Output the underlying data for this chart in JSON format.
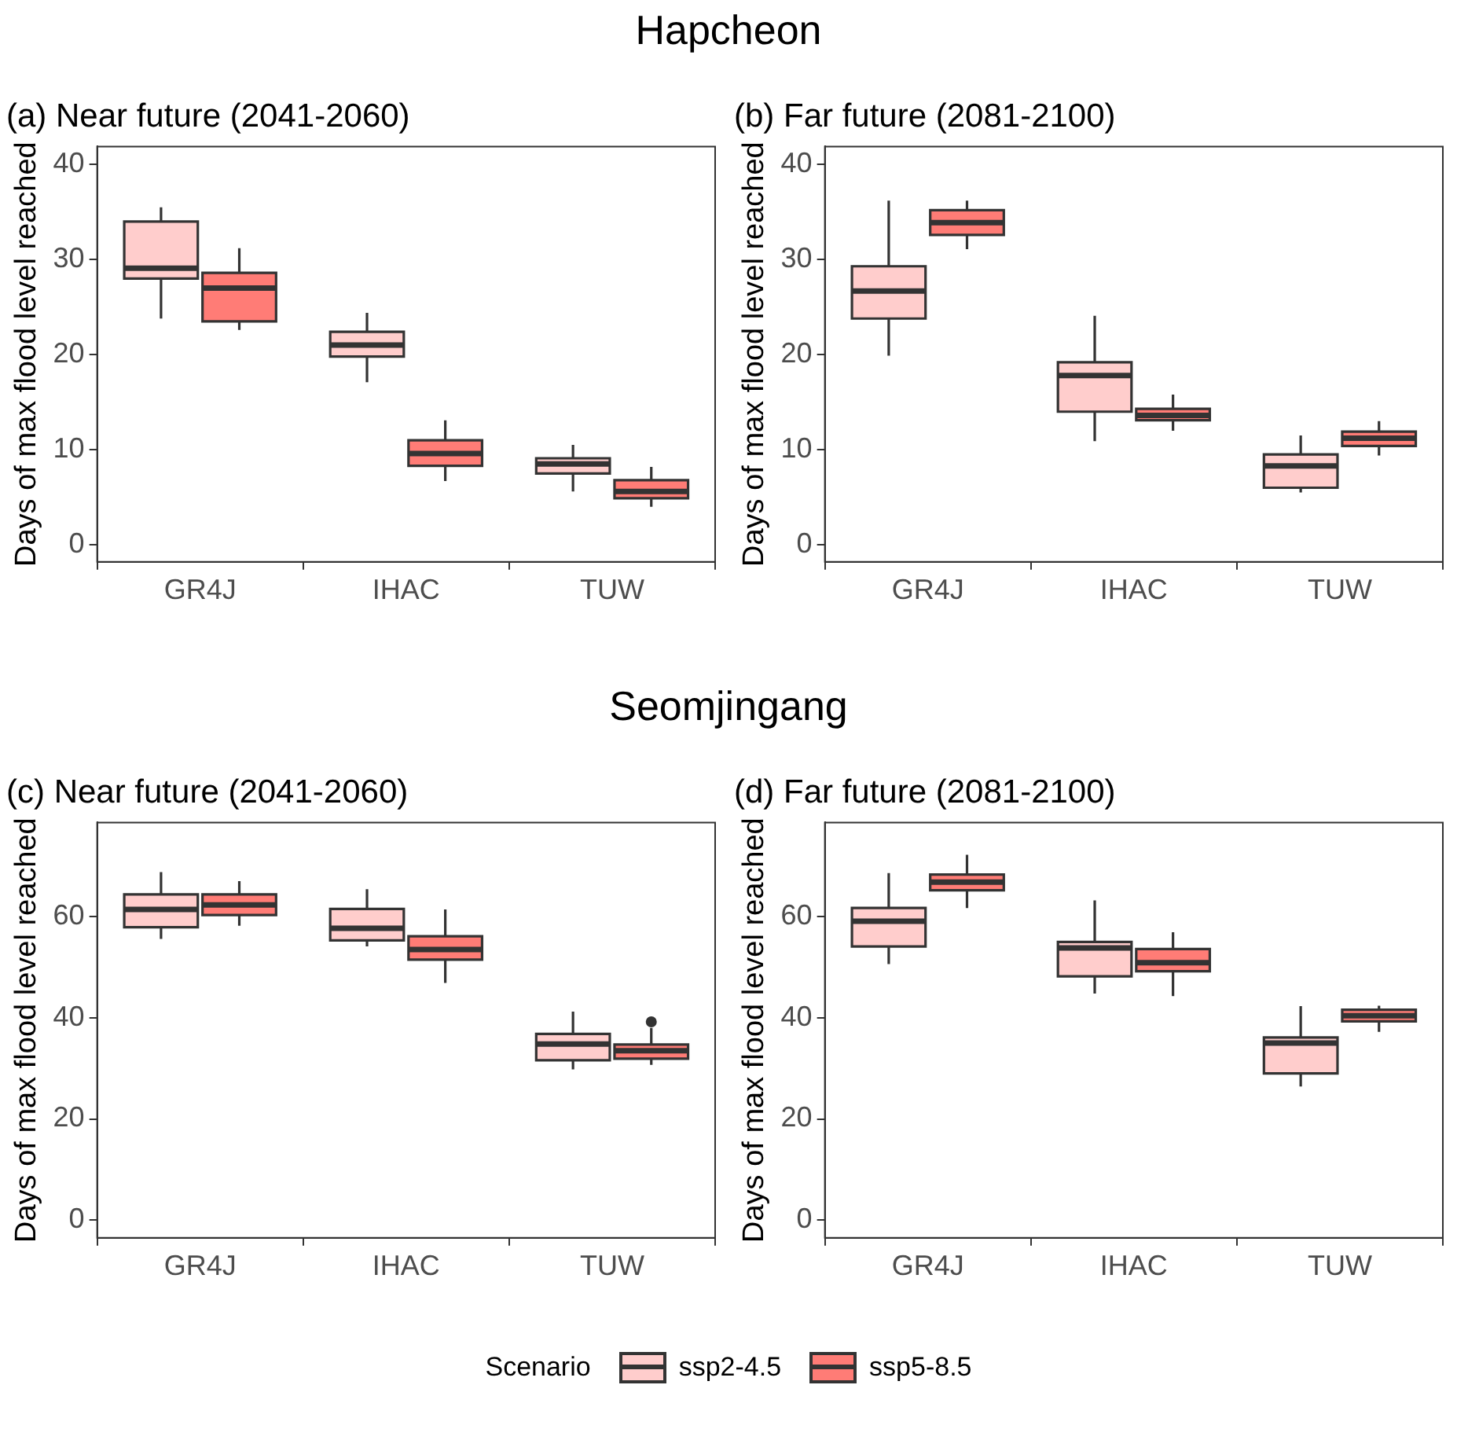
{
  "chart_data": [
    {
      "type": "box",
      "title": "(a) Near future (2041-2060)",
      "annotations": [
        "Hapcheon"
      ],
      "ylabel": "Days of max flood level reached",
      "categories": [
        "GR4J",
        "IHAC",
        "TUW"
      ],
      "ylim": [
        -1.8,
        41.9
      ],
      "yticks": [
        0,
        10,
        20,
        30,
        40
      ],
      "grid": false,
      "legend": "bottom",
      "series": [
        {
          "name": "ssp2-4.5",
          "color": "#ffcdcc",
          "boxes": [
            {
              "low": 23.8,
              "q1": 28.0,
              "median": 29.1,
              "q3": 34.0,
              "high": 35.5
            },
            {
              "low": 17.1,
              "q1": 19.8,
              "median": 21.0,
              "q3": 22.4,
              "high": 24.4
            },
            {
              "low": 5.6,
              "q1": 7.5,
              "median": 8.5,
              "q3": 9.1,
              "high": 10.5
            }
          ]
        },
        {
          "name": "ssp5-8.5",
          "color": "#ff7c76",
          "boxes": [
            {
              "low": 22.6,
              "q1": 23.5,
              "median": 27.0,
              "q3": 28.6,
              "high": 31.2
            },
            {
              "low": 6.7,
              "q1": 8.3,
              "median": 9.6,
              "q3": 11.0,
              "high": 13.1
            },
            {
              "low": 4.0,
              "q1": 4.9,
              "median": 5.6,
              "q3": 6.8,
              "high": 8.2
            }
          ]
        }
      ]
    },
    {
      "type": "box",
      "title": "(b) Far future (2081-2100)",
      "ylabel": "Days of max flood level reached",
      "categories": [
        "GR4J",
        "IHAC",
        "TUW"
      ],
      "ylim": [
        -1.8,
        41.9
      ],
      "yticks": [
        0,
        10,
        20,
        30,
        40
      ],
      "grid": false,
      "legend": "bottom",
      "series": [
        {
          "name": "ssp2-4.5",
          "color": "#ffcdcc",
          "boxes": [
            {
              "low": 19.9,
              "q1": 23.8,
              "median": 26.7,
              "q3": 29.3,
              "high": 36.2
            },
            {
              "low": 10.9,
              "q1": 14.0,
              "median": 17.8,
              "q3": 19.2,
              "high": 24.1
            },
            {
              "low": 5.5,
              "q1": 6.0,
              "median": 8.3,
              "q3": 9.5,
              "high": 11.5
            }
          ]
        },
        {
          "name": "ssp5-8.5",
          "color": "#ff7c76",
          "boxes": [
            {
              "low": 31.1,
              "q1": 32.6,
              "median": 33.9,
              "q3": 35.2,
              "high": 36.2
            },
            {
              "low": 12.0,
              "q1": 13.1,
              "median": 13.6,
              "q3": 14.3,
              "high": 15.8
            },
            {
              "low": 9.4,
              "q1": 10.4,
              "median": 11.2,
              "q3": 11.9,
              "high": 13.0
            }
          ]
        }
      ]
    },
    {
      "type": "box",
      "title": "(c) Near future (2041-2060)",
      "annotations": [
        "Seomjingang"
      ],
      "ylabel": "Days of max flood level reached",
      "categories": [
        "GR4J",
        "IHAC",
        "TUW"
      ],
      "ylim": [
        -3.5,
        78.6
      ],
      "yticks": [
        0,
        20,
        40,
        60
      ],
      "grid": false,
      "legend": "bottom",
      "series": [
        {
          "name": "ssp2-4.5",
          "color": "#ffcdcc",
          "boxes": [
            {
              "low": 55.6,
              "q1": 57.9,
              "median": 61.4,
              "q3": 64.4,
              "high": 68.8
            },
            {
              "low": 54.1,
              "q1": 55.3,
              "median": 57.7,
              "q3": 61.5,
              "high": 65.4
            },
            {
              "low": 29.8,
              "q1": 31.6,
              "median": 34.8,
              "q3": 36.8,
              "high": 41.2
            }
          ]
        },
        {
          "name": "ssp5-8.5",
          "color": "#ff7c76",
          "boxes": [
            {
              "low": 58.2,
              "q1": 60.3,
              "median": 62.3,
              "q3": 64.4,
              "high": 67.0
            },
            {
              "low": 46.9,
              "q1": 51.5,
              "median": 53.5,
              "q3": 56.1,
              "high": 61.4
            },
            {
              "low": 30.7,
              "q1": 31.9,
              "median": 33.5,
              "q3": 34.7,
              "high": 38.0,
              "outliers": [
                39.2
              ]
            }
          ]
        }
      ]
    },
    {
      "type": "box",
      "title": "(d) Far future (2081-2100)",
      "ylabel": "Days of max flood level reached",
      "categories": [
        "GR4J",
        "IHAC",
        "TUW"
      ],
      "ylim": [
        -3.5,
        78.6
      ],
      "yticks": [
        0,
        20,
        40,
        60
      ],
      "grid": false,
      "legend": "bottom",
      "legend_title": "Scenario",
      "series": [
        {
          "name": "ssp2-4.5",
          "color": "#ffcdcc",
          "boxes": [
            {
              "low": 50.6,
              "q1": 54.1,
              "median": 59.1,
              "q3": 61.7,
              "high": 68.6
            },
            {
              "low": 44.8,
              "q1": 48.2,
              "median": 53.8,
              "q3": 55.0,
              "high": 63.2
            },
            {
              "low": 26.4,
              "q1": 29.0,
              "median": 35.0,
              "q3": 36.1,
              "high": 42.3
            }
          ]
        },
        {
          "name": "ssp5-8.5",
          "color": "#ff7c76",
          "boxes": [
            {
              "low": 61.7,
              "q1": 65.2,
              "median": 66.8,
              "q3": 68.3,
              "high": 72.2
            },
            {
              "low": 44.3,
              "q1": 49.2,
              "median": 50.9,
              "q3": 53.6,
              "high": 56.9
            },
            {
              "low": 37.2,
              "q1": 39.3,
              "median": 40.4,
              "q3": 41.6,
              "high": 42.4
            }
          ]
        }
      ]
    }
  ]
}
